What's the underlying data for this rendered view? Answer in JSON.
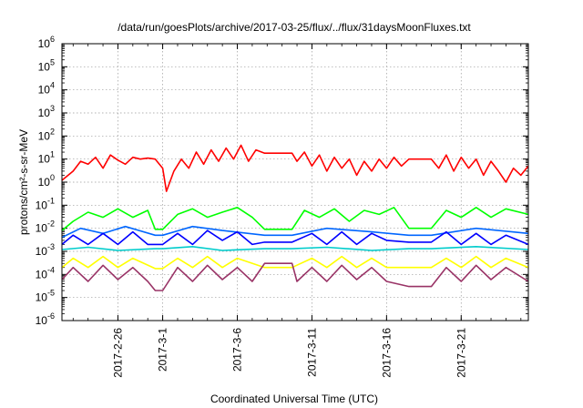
{
  "chart_data": {
    "type": "line",
    "title": "/data/run/goesPlots/archive/2017-03-25/flux/../flux/31daysMoonFluxes.txt",
    "xlabel": "Coordinated Universal Time (UTC)",
    "ylabel": "protons/cm²-s-sr-MeV",
    "xlim": [
      "2017-02-22T06:00",
      "2017-03-25T12:00"
    ],
    "ylim": [
      1e-06,
      1000000.0
    ],
    "yscale": "log",
    "x_ticks": [
      "2017-2-26",
      "2017-3-1",
      "2017-3-6",
      "2017-3-11",
      "2017-3-16",
      "2017-3-21"
    ],
    "y_ticks": [
      {
        "value": 1e-06,
        "exp": "-6"
      },
      {
        "value": 1e-05,
        "exp": "-5"
      },
      {
        "value": 0.0001,
        "exp": "-4"
      },
      {
        "value": 0.001,
        "exp": "-3"
      },
      {
        "value": 0.01,
        "exp": "-2"
      },
      {
        "value": 0.1,
        "exp": "-1"
      },
      {
        "value": 1,
        "exp": "0"
      },
      {
        "value": 10,
        "exp": "1"
      },
      {
        "value": 100,
        "exp": "2"
      },
      {
        "value": 1000,
        "exp": "3"
      },
      {
        "value": 10000,
        "exp": "4"
      },
      {
        "value": 100000,
        "exp": "5"
      },
      {
        "value": 1000000,
        "exp": "6"
      }
    ],
    "grid": true,
    "data_gaps": [
      [
        "2017-02-28T12:00",
        "2017-03-01T00:00"
      ],
      [
        "2017-03-07T20:00",
        "2017-03-09T16:00"
      ],
      [
        "2017-03-17T12:00",
        "2017-03-19T00:00"
      ]
    ],
    "series": [
      {
        "color": "#ff0000",
        "values": [
          [
            "2017-02-22T06:00",
            1.2
          ],
          [
            "2017-02-23T00:00",
            3
          ],
          [
            "2017-02-23T12:00",
            8
          ],
          [
            "2017-02-24T00:00",
            6
          ],
          [
            "2017-02-24T12:00",
            12
          ],
          [
            "2017-02-25T00:00",
            4
          ],
          [
            "2017-02-25T12:00",
            15
          ],
          [
            "2017-02-26T00:00",
            9
          ],
          [
            "2017-02-26T12:00",
            6
          ],
          [
            "2017-02-27T00:00",
            12
          ],
          [
            "2017-02-27T12:00",
            10
          ],
          [
            "2017-02-28T00:00",
            11
          ],
          [
            "2017-02-28T12:00",
            10
          ],
          [
            "2017-03-01T00:00",
            4
          ],
          [
            "2017-03-01T06:00",
            0.4
          ],
          [
            "2017-03-01T18:00",
            3
          ],
          [
            "2017-03-02T06:00",
            10
          ],
          [
            "2017-03-02T18:00",
            4
          ],
          [
            "2017-03-03T06:00",
            20
          ],
          [
            "2017-03-03T18:00",
            6
          ],
          [
            "2017-03-04T06:00",
            25
          ],
          [
            "2017-03-04T18:00",
            8
          ],
          [
            "2017-03-05T06:00",
            30
          ],
          [
            "2017-03-05T18:00",
            10
          ],
          [
            "2017-03-06T06:00",
            40
          ],
          [
            "2017-03-06T18:00",
            8
          ],
          [
            "2017-03-07T06:00",
            25
          ],
          [
            "2017-03-07T20:00",
            18
          ],
          [
            "2017-03-09T16:00",
            18
          ],
          [
            "2017-03-10T00:00",
            8
          ],
          [
            "2017-03-10T12:00",
            20
          ],
          [
            "2017-03-11T00:00",
            5
          ],
          [
            "2017-03-11T12:00",
            15
          ],
          [
            "2017-03-12T00:00",
            3
          ],
          [
            "2017-03-12T12:00",
            12
          ],
          [
            "2017-03-13T00:00",
            4
          ],
          [
            "2017-03-13T12:00",
            10
          ],
          [
            "2017-03-14T00:00",
            2
          ],
          [
            "2017-03-14T12:00",
            8
          ],
          [
            "2017-03-15T00:00",
            3
          ],
          [
            "2017-03-15T12:00",
            10
          ],
          [
            "2017-03-16T00:00",
            4
          ],
          [
            "2017-03-16T12:00",
            12
          ],
          [
            "2017-03-17T00:00",
            5
          ],
          [
            "2017-03-17T12:00",
            10
          ],
          [
            "2017-03-19T00:00",
            10
          ],
          [
            "2017-03-19T12:00",
            4
          ],
          [
            "2017-03-20T00:00",
            15
          ],
          [
            "2017-03-20T12:00",
            3
          ],
          [
            "2017-03-21T00:00",
            12
          ],
          [
            "2017-03-21T12:00",
            4
          ],
          [
            "2017-03-22T00:00",
            10
          ],
          [
            "2017-03-22T12:00",
            2
          ],
          [
            "2017-03-23T00:00",
            8
          ],
          [
            "2017-03-23T12:00",
            3
          ],
          [
            "2017-03-24T00:00",
            1
          ],
          [
            "2017-03-24T12:00",
            4
          ],
          [
            "2017-03-25T00:00",
            2
          ],
          [
            "2017-03-25T12:00",
            5
          ]
        ]
      },
      {
        "color": "#00ff00",
        "values": [
          [
            "2017-02-22T06:00",
            0.008
          ],
          [
            "2017-02-23T00:00",
            0.02
          ],
          [
            "2017-02-24T00:00",
            0.05
          ],
          [
            "2017-02-25T00:00",
            0.03
          ],
          [
            "2017-02-26T00:00",
            0.07
          ],
          [
            "2017-02-27T00:00",
            0.03
          ],
          [
            "2017-02-28T00:00",
            0.06
          ],
          [
            "2017-02-28T12:00",
            0.009
          ],
          [
            "2017-03-01T00:00",
            0.009
          ],
          [
            "2017-03-02T00:00",
            0.04
          ],
          [
            "2017-03-03T00:00",
            0.07
          ],
          [
            "2017-03-04T00:00",
            0.03
          ],
          [
            "2017-03-05T00:00",
            0.05
          ],
          [
            "2017-03-06T00:00",
            0.08
          ],
          [
            "2017-03-07T00:00",
            0.03
          ],
          [
            "2017-03-07T20:00",
            0.009
          ],
          [
            "2017-03-09T16:00",
            0.009
          ],
          [
            "2017-03-10T12:00",
            0.06
          ],
          [
            "2017-03-11T12:00",
            0.03
          ],
          [
            "2017-03-12T12:00",
            0.07
          ],
          [
            "2017-03-13T12:00",
            0.02
          ],
          [
            "2017-03-14T12:00",
            0.06
          ],
          [
            "2017-03-15T12:00",
            0.04
          ],
          [
            "2017-03-16T12:00",
            0.08
          ],
          [
            "2017-03-17T12:00",
            0.01
          ],
          [
            "2017-03-19T00:00",
            0.01
          ],
          [
            "2017-03-20T00:00",
            0.06
          ],
          [
            "2017-03-21T00:00",
            0.03
          ],
          [
            "2017-03-22T00:00",
            0.08
          ],
          [
            "2017-03-23T00:00",
            0.03
          ],
          [
            "2017-03-24T00:00",
            0.07
          ],
          [
            "2017-03-25T12:00",
            0.04
          ]
        ]
      },
      {
        "color": "#0066ff",
        "values": [
          [
            "2017-02-22T06:00",
            0.004
          ],
          [
            "2017-02-23T12:00",
            0.01
          ],
          [
            "2017-02-25T00:00",
            0.006
          ],
          [
            "2017-02-26T12:00",
            0.012
          ],
          [
            "2017-02-28T12:00",
            0.005
          ],
          [
            "2017-03-01T00:00",
            0.005
          ],
          [
            "2017-03-03T00:00",
            0.012
          ],
          [
            "2017-03-05T00:00",
            0.008
          ],
          [
            "2017-03-07T20:00",
            0.005
          ],
          [
            "2017-03-09T16:00",
            0.005
          ],
          [
            "2017-03-12T00:00",
            0.01
          ],
          [
            "2017-03-15T00:00",
            0.007
          ],
          [
            "2017-03-17T12:00",
            0.005
          ],
          [
            "2017-03-19T00:00",
            0.005
          ],
          [
            "2017-03-22T00:00",
            0.01
          ],
          [
            "2017-03-25T12:00",
            0.006
          ]
        ]
      },
      {
        "color": "#0000ff",
        "values": [
          [
            "2017-02-22T06:00",
            0.002
          ],
          [
            "2017-02-23T00:00",
            0.005
          ],
          [
            "2017-02-24T00:00",
            0.002
          ],
          [
            "2017-02-25T00:00",
            0.006
          ],
          [
            "2017-02-26T00:00",
            0.002
          ],
          [
            "2017-02-27T00:00",
            0.007
          ],
          [
            "2017-02-28T00:00",
            0.002
          ],
          [
            "2017-02-28T12:00",
            0.002
          ],
          [
            "2017-03-01T00:00",
            0.002
          ],
          [
            "2017-03-02T00:00",
            0.006
          ],
          [
            "2017-03-03T00:00",
            0.002
          ],
          [
            "2017-03-04T00:00",
            0.008
          ],
          [
            "2017-03-05T00:00",
            0.003
          ],
          [
            "2017-03-06T00:00",
            0.007
          ],
          [
            "2017-03-07T00:00",
            0.002
          ],
          [
            "2017-03-07T20:00",
            0.0025
          ],
          [
            "2017-03-09T16:00",
            0.0025
          ],
          [
            "2017-03-11T00:00",
            0.006
          ],
          [
            "2017-03-12T00:00",
            0.002
          ],
          [
            "2017-03-13T00:00",
            0.007
          ],
          [
            "2017-03-14T00:00",
            0.002
          ],
          [
            "2017-03-15T00:00",
            0.006
          ],
          [
            "2017-03-16T00:00",
            0.003
          ],
          [
            "2017-03-17T12:00",
            0.0025
          ],
          [
            "2017-03-19T00:00",
            0.0025
          ],
          [
            "2017-03-20T00:00",
            0.007
          ],
          [
            "2017-03-21T00:00",
            0.002
          ],
          [
            "2017-03-22T00:00",
            0.006
          ],
          [
            "2017-03-23T00:00",
            0.002
          ],
          [
            "2017-03-24T00:00",
            0.005
          ],
          [
            "2017-03-25T12:00",
            0.002
          ]
        ]
      },
      {
        "color": "#00cccc",
        "values": [
          [
            "2017-02-22T06:00",
            0.0012
          ],
          [
            "2017-02-24T00:00",
            0.0015
          ],
          [
            "2017-02-26T00:00",
            0.0011
          ],
          [
            "2017-02-28T12:00",
            0.0013
          ],
          [
            "2017-03-01T00:00",
            0.0013
          ],
          [
            "2017-03-03T00:00",
            0.0016
          ],
          [
            "2017-03-05T00:00",
            0.0011
          ],
          [
            "2017-03-07T20:00",
            0.0013
          ],
          [
            "2017-03-09T16:00",
            0.0013
          ],
          [
            "2017-03-12T00:00",
            0.0015
          ],
          [
            "2017-03-15T00:00",
            0.0011
          ],
          [
            "2017-03-17T12:00",
            0.0013
          ],
          [
            "2017-03-19T00:00",
            0.0013
          ],
          [
            "2017-03-22T00:00",
            0.0016
          ],
          [
            "2017-03-25T12:00",
            0.0012
          ]
        ]
      },
      {
        "color": "#ffff00",
        "values": [
          [
            "2017-02-22T06:00",
            0.0002
          ],
          [
            "2017-02-23T00:00",
            0.0005
          ],
          [
            "2017-02-24T00:00",
            0.0002
          ],
          [
            "2017-02-25T00:00",
            0.0006
          ],
          [
            "2017-02-26T00:00",
            0.0002
          ],
          [
            "2017-02-27T00:00",
            0.0005
          ],
          [
            "2017-02-28T12:00",
            0.00018
          ],
          [
            "2017-03-01T00:00",
            0.00018
          ],
          [
            "2017-03-02T00:00",
            0.0005
          ],
          [
            "2017-03-03T00:00",
            0.0002
          ],
          [
            "2017-03-04T00:00",
            0.0006
          ],
          [
            "2017-03-05T00:00",
            0.0002
          ],
          [
            "2017-03-06T00:00",
            0.0005
          ],
          [
            "2017-03-07T20:00",
            0.0002
          ],
          [
            "2017-03-09T16:00",
            0.0002
          ],
          [
            "2017-03-11T00:00",
            0.0005
          ],
          [
            "2017-03-12T00:00",
            0.0002
          ],
          [
            "2017-03-13T00:00",
            0.0006
          ],
          [
            "2017-03-14T00:00",
            0.0002
          ],
          [
            "2017-03-15T00:00",
            0.0005
          ],
          [
            "2017-03-16T00:00",
            0.0002
          ],
          [
            "2017-03-17T12:00",
            0.0002
          ],
          [
            "2017-03-19T00:00",
            0.0002
          ],
          [
            "2017-03-20T00:00",
            0.0005
          ],
          [
            "2017-03-21T00:00",
            0.0002
          ],
          [
            "2017-03-22T00:00",
            0.0006
          ],
          [
            "2017-03-23T00:00",
            0.0002
          ],
          [
            "2017-03-24T00:00",
            0.0005
          ],
          [
            "2017-03-25T12:00",
            0.0002
          ]
        ]
      },
      {
        "color": "#993366",
        "values": [
          [
            "2017-02-22T06:00",
            6e-05
          ],
          [
            "2017-02-23T00:00",
            0.0002
          ],
          [
            "2017-02-24T00:00",
            5e-05
          ],
          [
            "2017-02-25T00:00",
            0.00025
          ],
          [
            "2017-02-26T00:00",
            6e-05
          ],
          [
            "2017-02-27T00:00",
            0.0002
          ],
          [
            "2017-02-28T00:00",
            5e-05
          ],
          [
            "2017-02-28T12:00",
            2e-05
          ],
          [
            "2017-03-01T00:00",
            2e-05
          ],
          [
            "2017-03-02T00:00",
            0.0002
          ],
          [
            "2017-03-03T00:00",
            5e-05
          ],
          [
            "2017-03-04T00:00",
            0.00025
          ],
          [
            "2017-03-05T00:00",
            6e-05
          ],
          [
            "2017-03-06T00:00",
            0.0002
          ],
          [
            "2017-03-07T00:00",
            5e-05
          ],
          [
            "2017-03-07T20:00",
            0.0003
          ],
          [
            "2017-03-09T16:00",
            0.0003
          ],
          [
            "2017-03-10T00:00",
            5e-05
          ],
          [
            "2017-03-11T00:00",
            0.0002
          ],
          [
            "2017-03-12T00:00",
            5e-05
          ],
          [
            "2017-03-13T00:00",
            0.00025
          ],
          [
            "2017-03-14T00:00",
            6e-05
          ],
          [
            "2017-03-15T00:00",
            0.0002
          ],
          [
            "2017-03-16T00:00",
            5e-05
          ],
          [
            "2017-03-17T12:00",
            3e-05
          ],
          [
            "2017-03-19T00:00",
            3e-05
          ],
          [
            "2017-03-20T00:00",
            0.0002
          ],
          [
            "2017-03-21T00:00",
            5e-05
          ],
          [
            "2017-03-22T00:00",
            0.00025
          ],
          [
            "2017-03-23T00:00",
            6e-05
          ],
          [
            "2017-03-24T00:00",
            0.0002
          ],
          [
            "2017-03-25T12:00",
            5e-05
          ]
        ]
      }
    ]
  }
}
